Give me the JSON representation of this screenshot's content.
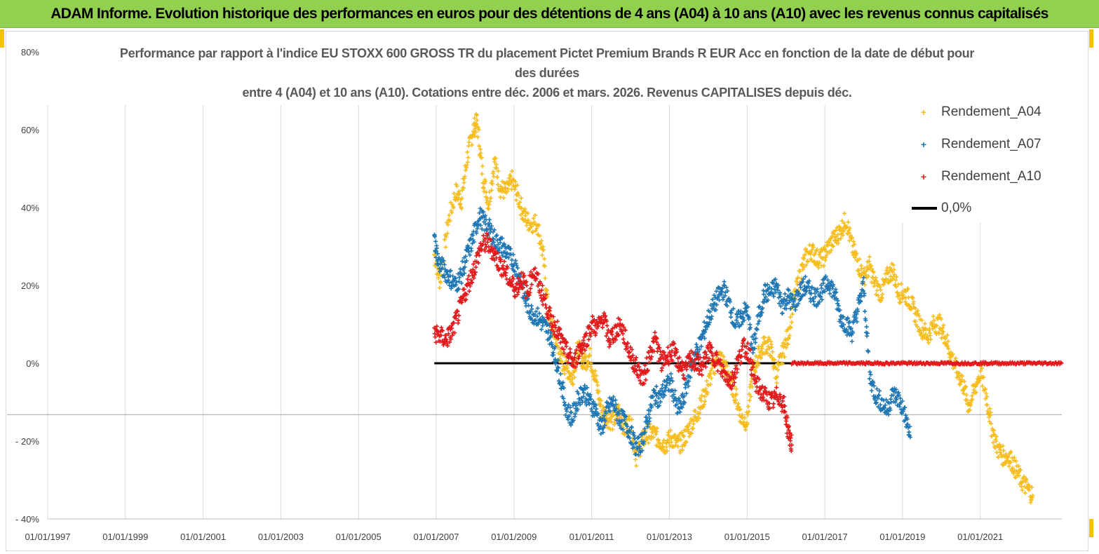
{
  "banner": {
    "title": "ADAM Informe. Evolution historique des performances en euros pour des détentions de 4 ans (A04) à 10 ans (A10) avec les revenus connus capitalisés"
  },
  "chart_data": {
    "type": "scatter",
    "title_lines": [
      "Performance par rapport à l'indice EU STOXX 600 GROSS TR  du placement Pictet Premium Brands R EUR Acc en fonction de la date de début pour",
      "des durées",
      "entre 4 (A04) et 10 ans (A10).  Cotations entre déc. 2006 et mars. 2026. Revenus CAPITALISES depuis déc."
    ],
    "y_axis": {
      "min": -40,
      "max": 80,
      "unit": "%",
      "ticks": [
        {
          "value": 80,
          "label": "80%"
        },
        {
          "value": 60,
          "label": "60%"
        },
        {
          "value": 40,
          "label": "40%"
        },
        {
          "value": 20,
          "label": "20%"
        },
        {
          "value": 0,
          "label": "0%"
        },
        {
          "value": -20,
          "label": "- 20%"
        },
        {
          "value": -40,
          "label": "- 40%"
        }
      ]
    },
    "x_axis": {
      "min_year": 1997,
      "max_year": 2023.1,
      "ticks": [
        {
          "year": 1997,
          "label": "01/01/1997"
        },
        {
          "year": 1999,
          "label": "01/01/1999"
        },
        {
          "year": 2001,
          "label": "01/01/2001"
        },
        {
          "year": 2003,
          "label": "01/01/2003"
        },
        {
          "year": 2005,
          "label": "01/01/2005"
        },
        {
          "year": 2007,
          "label": "01/01/2007"
        },
        {
          "year": 2009,
          "label": "01/01/2009"
        },
        {
          "year": 2011,
          "label": "01/01/2011"
        },
        {
          "year": 2013,
          "label": "01/01/2013"
        },
        {
          "year": 2015,
          "label": "01/01/2015"
        },
        {
          "year": 2017,
          "label": "01/01/2017"
        },
        {
          "year": 2019,
          "label": "01/01/2019"
        },
        {
          "year": 2021,
          "label": "01/01/2021"
        }
      ],
      "vertical_gridlines": true
    },
    "extra_horizontal_line_value": -13.2,
    "legend_position": "top-right",
    "series": [
      {
        "name": "Rendement_A04",
        "marker": "+",
        "color": "#f5bd1f",
        "x": [
          2006.95,
          2007.1,
          2007.3,
          2007.5,
          2007.65,
          2007.8,
          2007.95,
          2008.05,
          2008.2,
          2008.35,
          2008.5,
          2008.65,
          2008.8,
          2008.95,
          2009.1,
          2009.25,
          2009.4,
          2009.6,
          2009.75,
          2009.9,
          2010.05,
          2010.2,
          2010.35,
          2010.5,
          2010.65,
          2010.8,
          2010.95,
          2011.1,
          2011.25,
          2011.4,
          2011.55,
          2011.7,
          2011.85,
          2012.0,
          2012.15,
          2012.3,
          2012.45,
          2012.6,
          2012.75,
          2012.9,
          2013.05,
          2013.2,
          2013.35,
          2013.5,
          2013.65,
          2013.8,
          2013.95,
          2014.1,
          2014.25,
          2014.4,
          2014.55,
          2014.7,
          2014.85,
          2015.0,
          2015.15,
          2015.3,
          2015.45,
          2015.6,
          2015.75,
          2015.9,
          2016.05,
          2016.2,
          2016.35,
          2016.5,
          2016.65,
          2016.8,
          2016.95,
          2017.1,
          2017.25,
          2017.4,
          2017.55,
          2017.7,
          2017.85,
          2018.0,
          2018.15,
          2018.3,
          2018.45,
          2018.6,
          2018.75,
          2018.9,
          2019.05,
          2019.2,
          2019.35,
          2019.5,
          2019.65,
          2019.8,
          2019.95,
          2020.1,
          2020.25,
          2020.4,
          2020.55,
          2020.7,
          2020.85,
          2021.0,
          2021.15,
          2021.3,
          2021.45,
          2021.6,
          2021.75,
          2021.9,
          2022.05,
          2022.2,
          2022.35
        ],
        "y": [
          28,
          21,
          36,
          44,
          42,
          53,
          60,
          62,
          48,
          41,
          52,
          45,
          44,
          47,
          43,
          38,
          36,
          36,
          28,
          12,
          7,
          1,
          -1,
          -4,
          4,
          0,
          2,
          -4,
          -12,
          -14,
          -15,
          -12,
          -17,
          -15,
          -24,
          -20,
          -18,
          -18,
          -20,
          -21,
          -19,
          -21,
          -20,
          -17,
          -14,
          -11,
          -7,
          -2,
          2,
          0,
          -4,
          -8,
          -14,
          -15,
          -2,
          2,
          5,
          4,
          -3,
          2,
          7,
          16,
          22,
          27,
          29,
          27,
          27,
          30,
          32,
          34,
          37,
          30,
          26,
          22,
          25,
          20,
          18,
          22,
          24,
          18,
          18,
          16,
          12,
          9,
          7,
          10,
          10,
          7,
          2,
          -2,
          -5,
          -11,
          -7,
          -2,
          -8,
          -17,
          -22,
          -24,
          -24,
          -27,
          -30,
          -32,
          -34
        ]
      },
      {
        "name": "Rendement_A07",
        "marker": "+",
        "color": "#1f77b4",
        "x": [
          2006.95,
          2007.05,
          2007.2,
          2007.35,
          2007.5,
          2007.65,
          2007.8,
          2007.95,
          2008.1,
          2008.25,
          2008.4,
          2008.55,
          2008.7,
          2008.85,
          2009.0,
          2009.15,
          2009.3,
          2009.45,
          2009.6,
          2009.75,
          2009.9,
          2010.05,
          2010.2,
          2010.35,
          2010.5,
          2010.65,
          2010.8,
          2010.95,
          2011.1,
          2011.25,
          2011.4,
          2011.55,
          2011.7,
          2011.85,
          2012.0,
          2012.15,
          2012.3,
          2012.45,
          2012.6,
          2012.75,
          2012.9,
          2013.05,
          2013.2,
          2013.35,
          2013.5,
          2013.65,
          2013.8,
          2013.95,
          2014.1,
          2014.25,
          2014.4,
          2014.55,
          2014.7,
          2014.85,
          2015.0,
          2015.15,
          2015.3,
          2015.45,
          2015.6,
          2015.75,
          2015.9,
          2016.05,
          2016.2,
          2016.35,
          2016.5,
          2016.65,
          2016.8,
          2016.95,
          2017.1,
          2017.25,
          2017.4,
          2017.55,
          2017.7,
          2017.85,
          2018.0,
          2018.15,
          2018.3,
          2018.45,
          2018.6,
          2018.75,
          2018.9,
          2019.05,
          2019.2
        ],
        "y": [
          32,
          26,
          24,
          22,
          20,
          23,
          28,
          32,
          38,
          36,
          34,
          31,
          30,
          28,
          26,
          22,
          16,
          13,
          12,
          10,
          8,
          2,
          -4,
          -12,
          -14,
          -9,
          -7,
          -10,
          -12,
          -17,
          -12,
          -10,
          -14,
          -15,
          -18,
          -22,
          -20,
          -14,
          -8,
          -9,
          -6,
          -5,
          -12,
          -10,
          -3,
          2,
          5,
          10,
          14,
          17,
          19,
          15,
          10,
          12,
          14,
          3,
          12,
          18,
          18,
          20,
          15,
          17,
          15,
          18,
          20,
          18,
          17,
          19,
          21,
          18,
          12,
          10,
          8,
          14,
          20,
          -3,
          -8,
          -10,
          -12,
          -8,
          -9,
          -13,
          -19
        ]
      },
      {
        "name": "Rendement_A10",
        "marker": "+",
        "color": "#e31a1c",
        "x": [
          2006.95,
          2007.1,
          2007.25,
          2007.4,
          2007.55,
          2007.7,
          2007.85,
          2008.0,
          2008.15,
          2008.3,
          2008.45,
          2008.6,
          2008.75,
          2008.9,
          2009.05,
          2009.2,
          2009.35,
          2009.5,
          2009.65,
          2009.8,
          2009.95,
          2010.1,
          2010.25,
          2010.4,
          2010.55,
          2010.7,
          2010.85,
          2011.0,
          2011.15,
          2011.3,
          2011.45,
          2011.6,
          2011.75,
          2011.9,
          2012.05,
          2012.2,
          2012.35,
          2012.5,
          2012.65,
          2012.8,
          2012.95,
          2013.1,
          2013.25,
          2013.4,
          2013.55,
          2013.7,
          2013.85,
          2014.0,
          2014.15,
          2014.3,
          2014.45,
          2014.6,
          2014.75,
          2014.9,
          2015.05,
          2015.2,
          2015.35,
          2015.5,
          2015.65,
          2015.8,
          2015.95,
          2016.05,
          2016.15
        ],
        "y": [
          8,
          7,
          6,
          8,
          12,
          17,
          21,
          25,
          30,
          31,
          29,
          26,
          24,
          21,
          19,
          22,
          18,
          24,
          20,
          16,
          11,
          9,
          5,
          2,
          0,
          4,
          6,
          10,
          9,
          12,
          6,
          8,
          10,
          5,
          1,
          -2,
          -4,
          3,
          6,
          0,
          2,
          3,
          0,
          -2,
          1,
          0,
          -1,
          3,
          2,
          -1,
          -3,
          -5,
          0,
          4,
          3,
          -5,
          -7,
          -9,
          -10,
          -8,
          -11,
          -17,
          -21
        ]
      },
      {
        "name": "0,0%",
        "type": "line",
        "color": "#000000",
        "x": [
          2006.95,
          2023.1
        ],
        "y": [
          0,
          0
        ]
      },
      {
        "name": "A10 (zéro après 2016)",
        "marker": "+",
        "color": "#e31a1c",
        "show_in_legend": false,
        "x": [
          2016.15,
          2023.1
        ],
        "y": [
          0,
          0
        ]
      }
    ]
  }
}
